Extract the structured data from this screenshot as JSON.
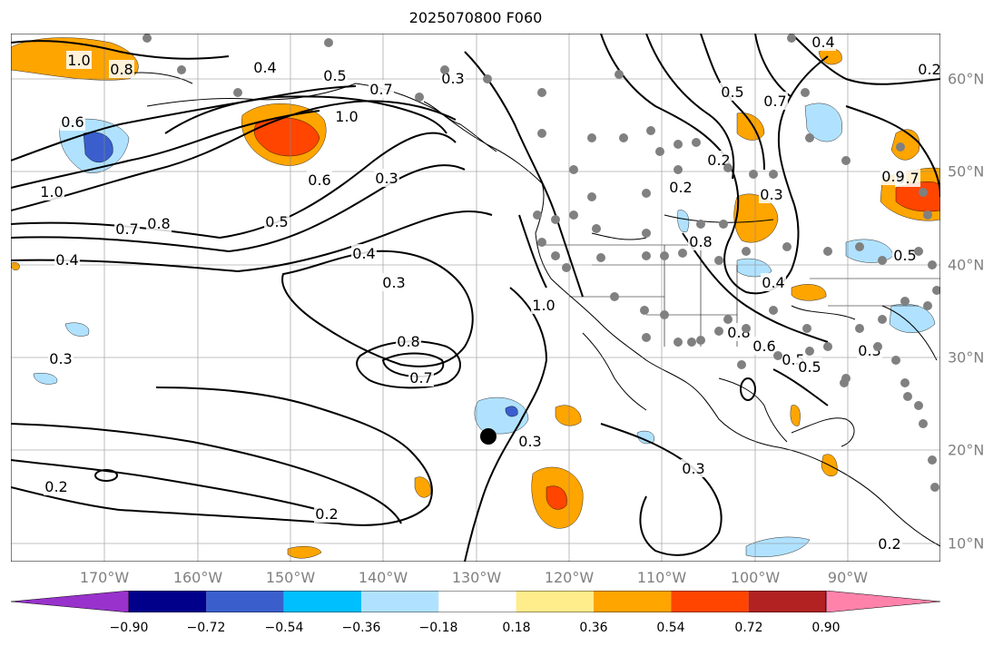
{
  "title": "2025070800 F060",
  "lon_labels": [
    "170°W",
    "160°W",
    "150°W",
    "140°W",
    "130°W",
    "120°W",
    "110°W",
    "100°W",
    "90°W"
  ],
  "lat_labels": [
    "60°N",
    "50°N",
    "40°N",
    "30°N",
    "20°N",
    "10°N"
  ],
  "colorbar": {
    "ticks": [
      "−0.90",
      "−0.72",
      "−0.54",
      "−0.36",
      "−0.18",
      "0.18",
      "0.36",
      "0.54",
      "0.72",
      "0.90"
    ],
    "colors": [
      "#9932cc",
      "#00008b",
      "#3a5fcd",
      "#00bfff",
      "#b0e2ff",
      "#ffffff",
      "#ffec8b",
      "#ffa500",
      "#ff4500",
      "#b22222",
      "#ff82ab"
    ]
  },
  "contour_labels": [
    "1.0",
    "0.8",
    "0.6",
    "0.4",
    "0.5",
    "0.7",
    "0.3",
    "1.0",
    "1.0",
    "0.7",
    "0.8",
    "0.5",
    "0.6",
    "0.3",
    "0.4",
    "0.4",
    "0.3",
    "0.8",
    "0.7",
    "0.3",
    "0.2",
    "0.2",
    "0.3",
    "0.8",
    "0.5",
    "0.7",
    "0.2",
    "0.3",
    "0.7",
    "0.8",
    "0.5",
    "0.9",
    "0.4",
    "0.6",
    "0.5",
    "0.3",
    "0.5",
    "0.4",
    "0.2",
    "0.2",
    "0.3",
    "1.0",
    "0.2"
  ],
  "colors": {
    "lake_fill": "#ffffff",
    "positive": "#ffa500",
    "negative": "#00bfff",
    "marker": "#000000",
    "station": "#808080"
  }
}
